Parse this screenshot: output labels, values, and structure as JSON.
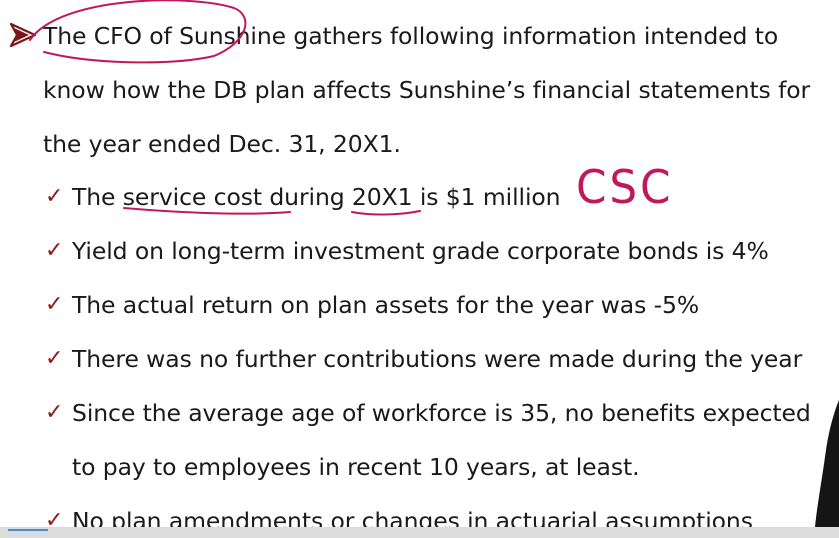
{
  "intro": {
    "line1": "The CFO of Sunshine gathers following information intended to",
    "line2": "know how the DB plan affects Sunshine’s financial statements for",
    "line3": "the year ended Dec. 31, 20X1."
  },
  "check_glyph": "✓",
  "bullets": [
    {
      "text": "The service cost during 20X1 is $1 million"
    },
    {
      "text": "Yield on long-term investment grade corporate bonds is 4%"
    },
    {
      "text": "The actual return on plan assets for the year was -5%"
    },
    {
      "text": "There was no further contributions were made during the year"
    },
    {
      "text": "Since the average age of workforce is 35, no benefits expected"
    },
    {
      "text": "to pay to employees in recent 10 years, at least."
    },
    {
      "text": "No plan amendments or changes in actuarial assumptions"
    }
  ],
  "annotation": {
    "handwritten": "CSC",
    "ink_color": "#c2185b"
  },
  "colors": {
    "text": "#1a1a1a",
    "check": "#8b1a1a",
    "bullet_arrow": "#7a1818"
  }
}
